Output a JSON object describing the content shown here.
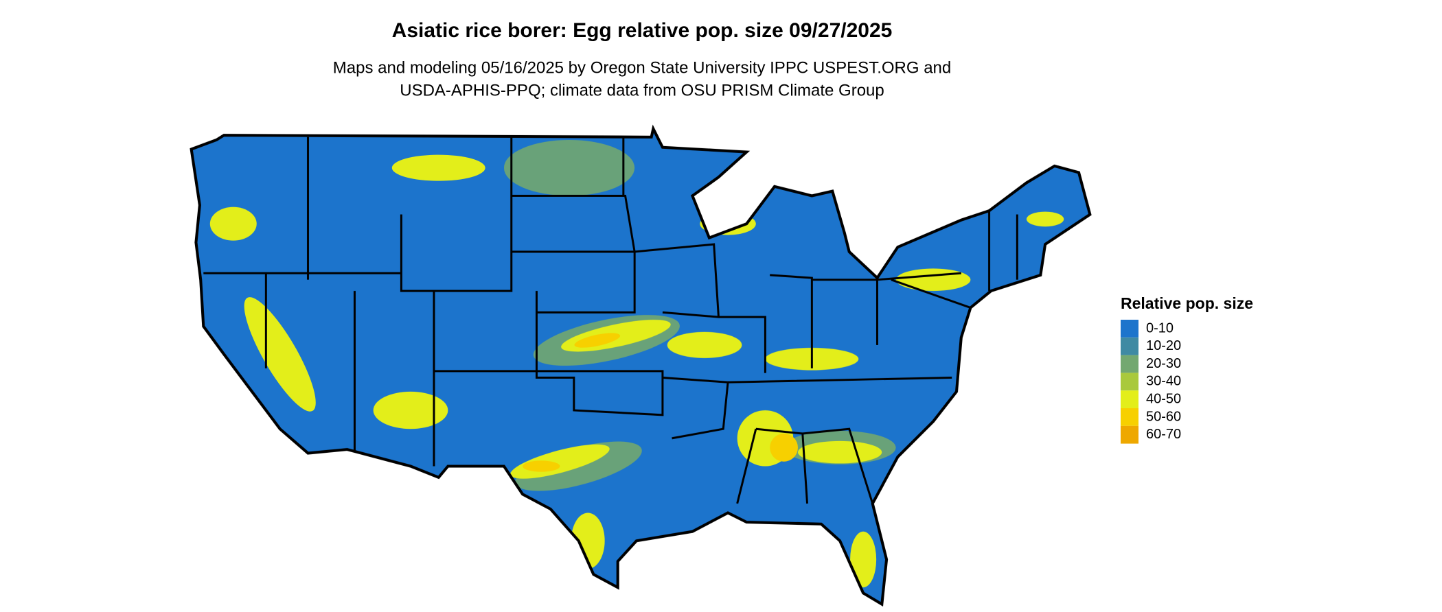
{
  "title": "Asiatic rice borer: Egg relative pop. size 09/27/2025",
  "subtitle": [
    "Maps and modeling 05/16/2025 by Oregon State University IPPC USPEST.ORG and",
    "USDA-APHIS-PPQ; climate data from OSU PRISM Climate Group"
  ],
  "legend": {
    "title": "Relative pop. size",
    "items": [
      {
        "label": "0-10",
        "color": "#1c74cc"
      },
      {
        "label": "10-20",
        "color": "#3f8aa3"
      },
      {
        "label": "20-30",
        "color": "#73a870"
      },
      {
        "label": "30-40",
        "color": "#a9c93c"
      },
      {
        "label": "40-50",
        "color": "#e3ee1a"
      },
      {
        "label": "50-60",
        "color": "#f7d000"
      },
      {
        "label": "60-70",
        "color": "#eea800"
      }
    ]
  }
}
